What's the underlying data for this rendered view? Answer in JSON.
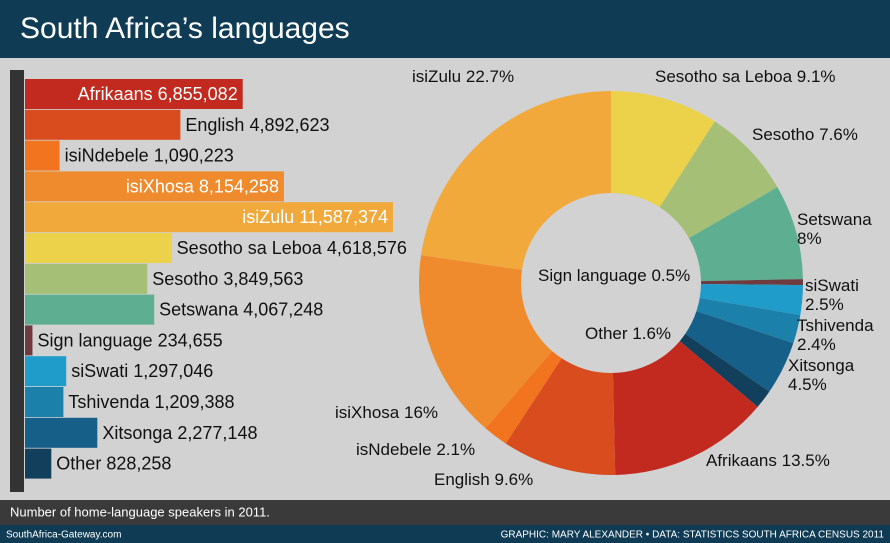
{
  "header": {
    "title": "South Africa’s languages"
  },
  "footer": {
    "note": "Number of home-language speakers in 2011.",
    "site": "SouthAfrica-Gateway.com",
    "credit": "GRAPHIC: MARY ALEXANDER • DATA: STATISTICS SOUTH AFRICA CENSUS 2011"
  },
  "chart_data": [
    {
      "type": "bar",
      "categories": [
        "Afrikaans",
        "English",
        "isiNdebele",
        "isiXhosa",
        "isiZulu",
        "Sesotho sa Leboa",
        "Sesotho",
        "Setswana",
        "Sign language",
        "siSwati",
        "Tshivenda",
        "Xitsonga",
        "Other"
      ],
      "values": [
        6855082,
        4892623,
        1090223,
        8154258,
        11587374,
        4618576,
        3849563,
        4067248,
        234655,
        1297046,
        1209388,
        2277148,
        828258
      ],
      "value_labels": [
        "6,855,082",
        "4,892,623",
        "1,090,223",
        "8,154,258",
        "11,587,374",
        "4,618,576",
        "3,849,563",
        "4,067,248",
        "234,655",
        "1,297,046",
        "1,209,388",
        "2,277,148",
        "828,258"
      ],
      "colors": [
        "#c22a1f",
        "#d94c1e",
        "#f3741f",
        "#ef8b2c",
        "#f0a93a",
        "#ecd14b",
        "#a6bf76",
        "#5eae92",
        "#6e3b3f",
        "#1f9cca",
        "#1b80aa",
        "#165f88",
        "#123f5b"
      ]
    },
    {
      "type": "donut",
      "categories": [
        "Sesotho sa Leboa",
        "Sesotho",
        "Setswana",
        "Sign language",
        "siSwati",
        "Tshivenda",
        "Xitsonga",
        "Other",
        "Afrikaans",
        "English",
        "isNdebele",
        "isiXhosa",
        "isiZulu"
      ],
      "values": [
        9.1,
        7.6,
        8,
        0.5,
        2.5,
        2.4,
        4.5,
        1.6,
        13.5,
        9.6,
        2.1,
        16,
        22.7
      ],
      "value_labels": [
        "9.1%",
        "7.6%",
        "8%",
        "0.5%",
        "2.5%",
        "2.4%",
        "4.5%",
        "1.6%",
        "13.5%",
        "9.6%",
        "2.1%",
        "16%",
        "22.7%"
      ],
      "colors": [
        "#ecd14b",
        "#a6bf76",
        "#5eae92",
        "#6e3b3f",
        "#1f9cca",
        "#1b80aa",
        "#165f88",
        "#123f5b",
        "#c22a1f",
        "#d94c1e",
        "#f3741f",
        "#ef8b2c",
        "#f0a93a"
      ]
    }
  ]
}
